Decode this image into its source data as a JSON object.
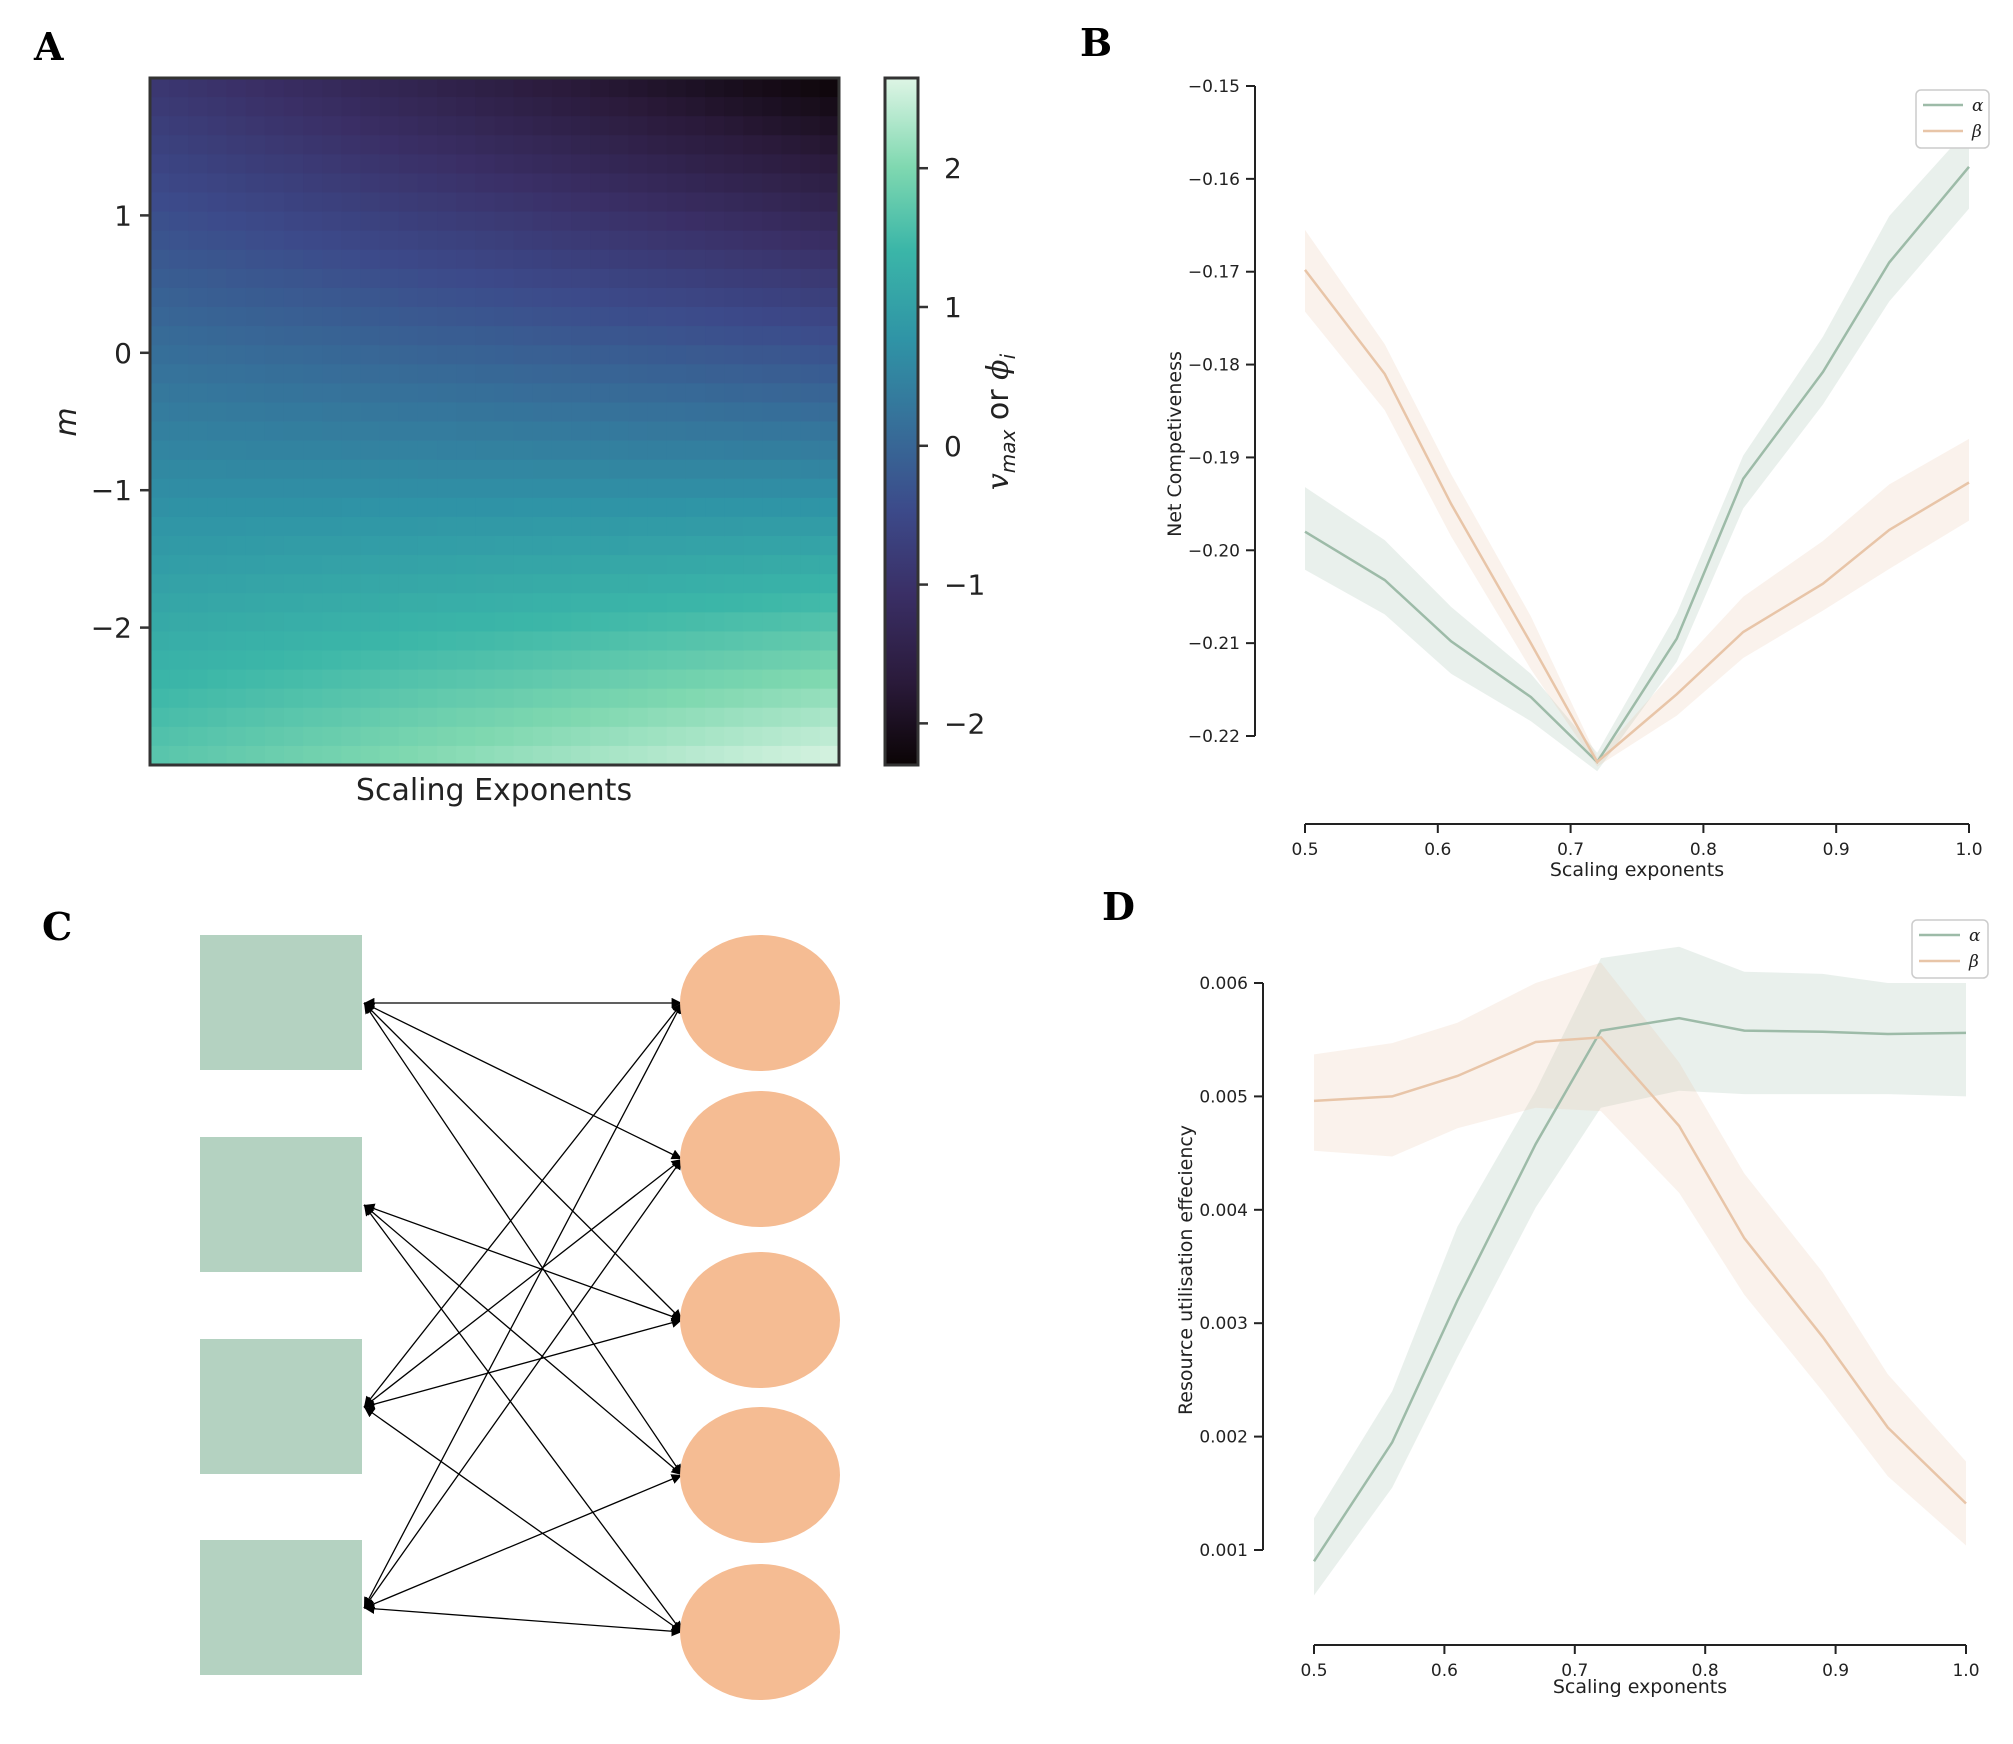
{
  "panels": {
    "a": "A",
    "b": "B",
    "c": "C",
    "d": "D"
  },
  "colors": {
    "alpha": "#9dbba8",
    "beta": "#e8c5a8",
    "rect": "#b4d2c1",
    "circle": "#f5bc93"
  },
  "chart_data": [
    {
      "panel": "A",
      "type": "heatmap",
      "xlabel": "Scaling Exponents",
      "ylabel": "m",
      "y_ticks": [
        1,
        0,
        -1,
        -2
      ],
      "y_tick_labels": [
        "1",
        "0",
        "−1",
        "−2"
      ],
      "ylim": [
        -3,
        2
      ],
      "colorbar": {
        "label": "v_max or ϕ_i",
        "label_parts": [
          "v",
          "max",
          " or ",
          "ϕ",
          "i"
        ],
        "ticks": [
          2,
          1,
          0,
          -1,
          -2
        ],
        "tick_labels": [
          "2",
          "1",
          "0",
          "−1",
          "−2"
        ],
        "range": [
          -2.3,
          2.65
        ],
        "colormap": "mako"
      },
      "corner_values": {
        "top_left": -0.9,
        "top_right": -2.3,
        "bottom_left": 1.7,
        "bottom_right": 2.65
      }
    },
    {
      "panel": "B",
      "type": "line",
      "xlabel": "Scaling exponents",
      "ylabel": "Net Competiveness",
      "xlim": [
        0.5,
        1.0
      ],
      "ylim": [
        -0.22,
        -0.15
      ],
      "x_ticks": [
        0.5,
        0.6,
        0.7,
        0.8,
        0.9,
        1.0
      ],
      "y_ticks": [
        -0.15,
        -0.16,
        -0.17,
        -0.18,
        -0.19,
        -0.2,
        -0.21,
        -0.22
      ],
      "x_tick_labels": [
        "0.5",
        "0.6",
        "0.7",
        "0.8",
        "0.9",
        "1.0"
      ],
      "y_tick_labels": [
        "−0.15",
        "−0.16",
        "−0.17",
        "−0.18",
        "−0.19",
        "−0.20",
        "−0.21",
        "−0.22"
      ],
      "legend_position": "top-right",
      "x": [
        0.5,
        0.56,
        0.61,
        0.67,
        0.72,
        0.78,
        0.83,
        0.89,
        0.94,
        1.0
      ],
      "series": [
        {
          "name": "α",
          "values": [
            -0.198,
            -0.2032,
            -0.2098,
            -0.2158,
            -0.2228,
            -0.2095,
            -0.1923,
            -0.1808,
            -0.169,
            -0.1587
          ],
          "lower": [
            -0.2021,
            -0.2069,
            -0.2133,
            -0.2184,
            -0.2238,
            -0.212,
            -0.1955,
            -0.1843,
            -0.1732,
            -0.1632
          ],
          "upper": [
            -0.1932,
            -0.1989,
            -0.2061,
            -0.2133,
            -0.2218,
            -0.2068,
            -0.1898,
            -0.177,
            -0.164,
            -0.1545
          ]
        },
        {
          "name": "β",
          "values": [
            -0.1698,
            -0.181,
            -0.195,
            -0.21,
            -0.2228,
            -0.2155,
            -0.2088,
            -0.2036,
            -0.1978,
            -0.1927
          ],
          "lower": [
            -0.1743,
            -0.1849,
            -0.1985,
            -0.2128,
            -0.2233,
            -0.2178,
            -0.2116,
            -0.2065,
            -0.202,
            -0.1968
          ],
          "upper": [
            -0.1655,
            -0.1778,
            -0.1918,
            -0.2071,
            -0.2223,
            -0.2127,
            -0.205,
            -0.199,
            -0.1929,
            -0.188
          ]
        }
      ]
    },
    {
      "panel": "D",
      "type": "line",
      "xlabel": "Scaling exponents",
      "ylabel": "Resource utilisation effeciency",
      "xlim": [
        0.5,
        1.0
      ],
      "ylim": [
        0.001,
        0.006
      ],
      "x_ticks": [
        0.5,
        0.6,
        0.7,
        0.8,
        0.9,
        1.0
      ],
      "y_ticks": [
        0.006,
        0.005,
        0.004,
        0.003,
        0.002,
        0.001
      ],
      "x_tick_labels": [
        "0.5",
        "0.6",
        "0.7",
        "0.8",
        "0.9",
        "1.0"
      ],
      "y_tick_labels": [
        "0.006",
        "0.005",
        "0.004",
        "0.003",
        "0.002",
        "0.001"
      ],
      "legend_position": "top-right",
      "x": [
        0.5,
        0.56,
        0.61,
        0.67,
        0.72,
        0.78,
        0.83,
        0.89,
        0.94,
        1.0
      ],
      "series": [
        {
          "name": "α",
          "values": [
            0.0009,
            0.00195,
            0.0032,
            0.00458,
            0.00558,
            0.00569,
            0.00558,
            0.00557,
            0.00555,
            0.00556
          ],
          "lower": [
            0.0006,
            0.00155,
            0.0027,
            0.00402,
            0.0049,
            0.00505,
            0.00502,
            0.00502,
            0.00502,
            0.005
          ],
          "upper": [
            0.00128,
            0.0024,
            0.00385,
            0.00505,
            0.00622,
            0.00632,
            0.0061,
            0.00608,
            0.006,
            0.006
          ]
        },
        {
          "name": "β",
          "values": [
            0.00496,
            0.005,
            0.00518,
            0.00548,
            0.00552,
            0.00474,
            0.00375,
            0.00288,
            0.00208,
            0.00141
          ],
          "lower": [
            0.00452,
            0.00447,
            0.00472,
            0.0049,
            0.00487,
            0.00415,
            0.00325,
            0.0024,
            0.00165,
            0.00104
          ],
          "upper": [
            0.00537,
            0.00547,
            0.00565,
            0.006,
            0.00618,
            0.0053,
            0.00432,
            0.00345,
            0.00255,
            0.00178
          ]
        }
      ]
    }
  ],
  "diagram_c": {
    "edges": [
      [
        0,
        0
      ],
      [
        0,
        1
      ],
      [
        0,
        2
      ],
      [
        0,
        3
      ],
      [
        1,
        2
      ],
      [
        1,
        3
      ],
      [
        1,
        4
      ],
      [
        2,
        0
      ],
      [
        2,
        1
      ],
      [
        2,
        2
      ],
      [
        2,
        4
      ],
      [
        3,
        0
      ],
      [
        3,
        1
      ],
      [
        3,
        3
      ],
      [
        3,
        4
      ]
    ]
  }
}
